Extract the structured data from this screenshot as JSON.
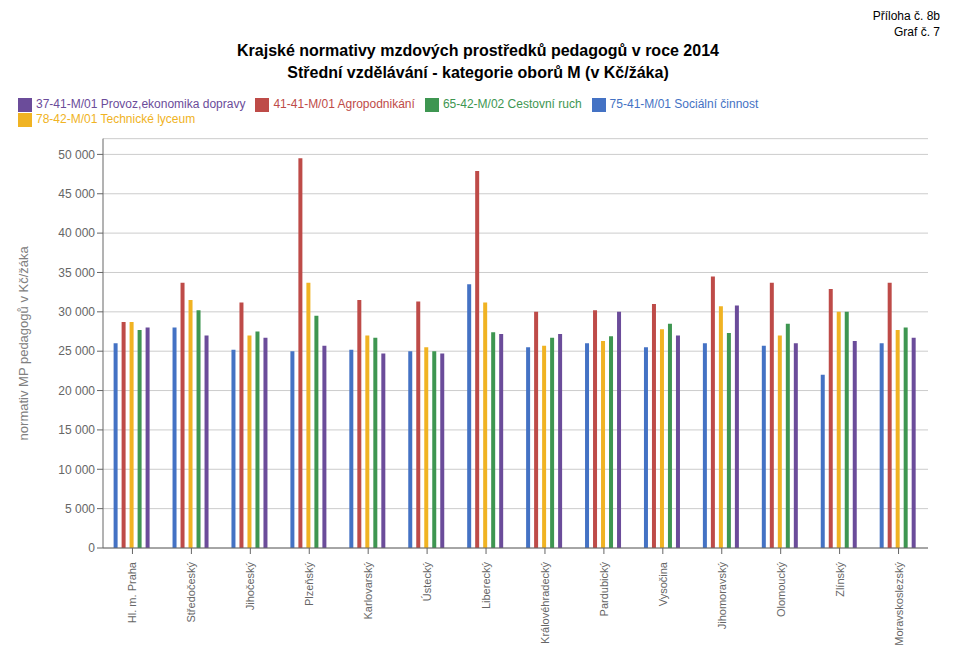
{
  "chart_data": {
    "type": "bar",
    "title": "Krajské normativy mzdových prostředků pedagogů v roce 2014",
    "subtitle": "Střední vzdělávání - kategorie oborů M (v Kč/žáka)",
    "y_label": "normativ MP pedagogů v Kč/žáka",
    "annotations": [
      "Příloha č. 8b",
      "Graf č. 7"
    ],
    "categories": [
      "Hl. m. Praha",
      "Středočeský",
      "Jihočeský",
      "Plzeňský",
      "Karlovarský",
      "Ústecký",
      "Liberecký",
      "Královéhradecký",
      "Pardubický",
      "Vysočina",
      "Jihomoravský",
      "Olomoucký",
      "Zlínský",
      "Moravskoslezský"
    ],
    "series": [
      {
        "name": "75-41-M/01 Sociální činnost",
        "color": "#4472C4",
        "values": [
          26000,
          28000,
          25200,
          25000,
          25200,
          25000,
          33500,
          25500,
          26000,
          25500,
          26000,
          25700,
          22000,
          26000
        ]
      },
      {
        "name": "41-41-M/01 Agropodnikání",
        "color": "#BE4B48",
        "values": [
          28700,
          33700,
          31200,
          49500,
          31500,
          31300,
          47900,
          30000,
          30200,
          31000,
          34500,
          33700,
          32900,
          33700
        ]
      },
      {
        "name": "78-42-M/01 Technické lyceum",
        "color": "#F0B323",
        "values": [
          28700,
          31500,
          27000,
          33700,
          27000,
          25500,
          31200,
          25700,
          26300,
          27800,
          30700,
          27000,
          30000,
          27700
        ]
      },
      {
        "name": "65-42-M/02 Cestovní ruch",
        "color": "#3E9651",
        "values": [
          27700,
          30200,
          27500,
          29500,
          26700,
          25000,
          27400,
          26700,
          26900,
          28500,
          27300,
          28500,
          30000,
          28000
        ]
      },
      {
        "name": "37-41-M/01 Provoz,ekonomika dopravy",
        "color": "#6B4C9A",
        "values": [
          28000,
          27000,
          26700,
          25700,
          24700,
          24700,
          27200,
          27200,
          30000,
          27000,
          30800,
          26000,
          26300,
          26700
        ]
      }
    ],
    "ylim": [
      0,
      52000
    ],
    "yticks": [
      0,
      {
        "value": 5000,
        "label": "5 000"
      },
      {
        "value": 10000,
        "label": "10 000"
      },
      {
        "value": 15000,
        "label": "15 000"
      },
      {
        "value": 20000,
        "label": "20 000"
      },
      {
        "value": 25000,
        "label": "25 000"
      },
      {
        "value": 30000,
        "label": "30 000"
      },
      {
        "value": 35000,
        "label": "35 000"
      },
      {
        "value": 40000,
        "label": "40 000"
      },
      {
        "value": 45000,
        "label": "45 000"
      },
      {
        "value": 50000,
        "label": "50 000"
      }
    ],
    "grid": true,
    "legend": "top"
  }
}
